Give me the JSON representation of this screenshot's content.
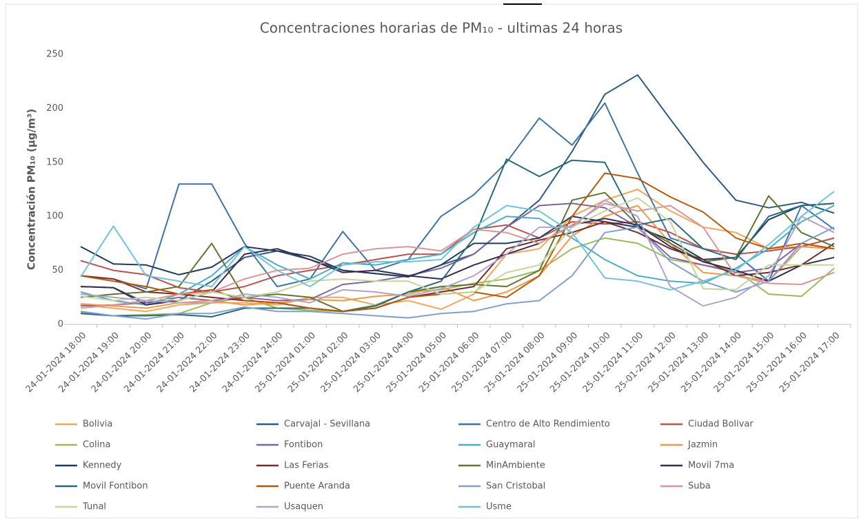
{
  "chart_data": {
    "type": "line",
    "title": "Concentraciones horarias de PM₁₀ - ultimas 24 horas",
    "y_label": "Concentración PM₁₀ (µg/m³)",
    "ylim": [
      0,
      250
    ],
    "yticks": [
      0,
      50,
      100,
      150,
      200,
      250
    ],
    "grid": false,
    "legend": "bottom",
    "categories": [
      "24-01-2024 18:00",
      "24-01-2024 19:00",
      "24-01-2024 20:00",
      "24-01-2024 21:00",
      "24-01-2024 22:00",
      "24-01-2024 23:00",
      "24-01-2024 24:00",
      "25-01-2024 01:00",
      "25-01-2024 02:00",
      "25-01-2024 03:00",
      "25-01-2024 04:00",
      "25-01-2024 05:00",
      "25-01-2024 06:00",
      "25-01-2024 07:00",
      "25-01-2024 08:00",
      "25-01-2024 09:00",
      "25-01-2024 10:00",
      "25-01-2024 11:00",
      "25-01-2024 12:00",
      "25-01-2024 13:00",
      "25-01-2024 14:00",
      "25-01-2024 15:00",
      "25-01-2024 16:00",
      "25-01-2024 17:00"
    ],
    "series": [
      {
        "name": "Bolivia",
        "color": "#f7a55b",
        "values": [
          18,
          15,
          12,
          18,
          20,
          20,
          18,
          25,
          25,
          18,
          22,
          14,
          28,
          65,
          70,
          100,
          115,
          125,
          105,
          90,
          85,
          70,
          72,
          70
        ]
      },
      {
        "name": "Carvajal - Sevillana",
        "color": "#2c5a86",
        "values": [
          35,
          34,
          20,
          22,
          40,
          62,
          68,
          60,
          50,
          47,
          44,
          55,
          65,
          90,
          115,
          160,
          213,
          231,
          190,
          150,
          115,
          108,
          113,
          103
        ]
      },
      {
        "name": "Centro de Alto Rendimiento",
        "color": "#3f73a8",
        "values": [
          45,
          42,
          33,
          130,
          130,
          75,
          35,
          42,
          86,
          50,
          60,
          100,
          120,
          150,
          191,
          166,
          205,
          140,
          80,
          70,
          65,
          40,
          110,
          88
        ]
      },
      {
        "name": "Ciudad Bolivar",
        "color": "#c0504d",
        "values": [
          59,
          50,
          46,
          34,
          30,
          35,
          45,
          50,
          55,
          60,
          65,
          65,
          88,
          92,
          80,
          95,
          93,
          95,
          85,
          70,
          65,
          68,
          72,
          80
        ]
      },
      {
        "name": "Colina",
        "color": "#9bbb59",
        "values": [
          11,
          8,
          9,
          10,
          20,
          25,
          15,
          13,
          12,
          18,
          30,
          32,
          38,
          42,
          50,
          70,
          80,
          75,
          60,
          55,
          50,
          28,
          26,
          52
        ]
      },
      {
        "name": "Fontibon",
        "color": "#8064a2",
        "values": [
          17,
          18,
          20,
          25,
          22,
          25,
          22,
          23,
          37,
          40,
          45,
          52,
          65,
          90,
          110,
          112,
          108,
          90,
          62,
          55,
          48,
          52,
          75,
          70
        ]
      },
      {
        "name": "Guaymaral",
        "color": "#4bacc6",
        "values": [
          30,
          22,
          18,
          28,
          45,
          72,
          55,
          42,
          57,
          55,
          60,
          65,
          85,
          100,
          98,
          80,
          60,
          45,
          40,
          38,
          52,
          70,
          95,
          110
        ]
      },
      {
        "name": "Jazmin",
        "color": "#f79646",
        "values": [
          19,
          17,
          15,
          20,
          22,
          18,
          20,
          23,
          22,
          26,
          28,
          35,
          22,
          30,
          45,
          82,
          100,
          110,
          75,
          48,
          45,
          40,
          72,
          70
        ]
      },
      {
        "name": "Kennedy",
        "color": "#1f3a5f",
        "values": [
          72,
          56,
          55,
          46,
          53,
          72,
          68,
          63,
          50,
          47,
          44,
          55,
          75,
          75,
          80,
          100,
          95,
          90,
          78,
          60,
          62,
          97,
          110,
          112
        ]
      },
      {
        "name": "Las Ferias",
        "color": "#772c2a",
        "values": [
          45,
          42,
          30,
          28,
          25,
          22,
          20,
          15,
          12,
          15,
          25,
          30,
          35,
          70,
          78,
          85,
          95,
          85,
          70,
          60,
          45,
          48,
          55,
          75
        ]
      },
      {
        "name": "MinAmbiente",
        "color": "#5f7530",
        "values": [
          25,
          28,
          30,
          35,
          75,
          25,
          28,
          25,
          12,
          17,
          30,
          35,
          37,
          35,
          50,
          115,
          122,
          92,
          75,
          58,
          62,
          119,
          85,
          72
        ]
      },
      {
        "name": "Movil 7ma",
        "color": "#3b2a50",
        "values": [
          35,
          34,
          18,
          22,
          30,
          65,
          70,
          60,
          48,
          50,
          45,
          42,
          55,
          65,
          75,
          92,
          98,
          92,
          72,
          58,
          50,
          40,
          55,
          62
        ]
      },
      {
        "name": "Movil Fontibon",
        "color": "#276a7c",
        "values": [
          10,
          8,
          8,
          9,
          7,
          15,
          15,
          15,
          12,
          17,
          30,
          40,
          80,
          153,
          137,
          152,
          150,
          92,
          98,
          70,
          60,
          100,
          110,
          112
        ]
      },
      {
        "name": "Puente Aranda",
        "color": "#b65708",
        "values": [
          45,
          40,
          35,
          28,
          32,
          22,
          20,
          15,
          12,
          15,
          25,
          28,
          30,
          25,
          45,
          100,
          140,
          135,
          118,
          104,
          80,
          70,
          75,
          70
        ]
      },
      {
        "name": "San Cristobal",
        "color": "#7f9fcf",
        "values": [
          12,
          8,
          5,
          10,
          10,
          16,
          12,
          12,
          10,
          8,
          6,
          10,
          12,
          19,
          22,
          45,
          85,
          90,
          58,
          40,
          30,
          40,
          75,
          90
        ]
      },
      {
        "name": "Suba",
        "color": "#d99694",
        "values": [
          15,
          18,
          22,
          28,
          30,
          42,
          50,
          52,
          65,
          70,
          72,
          68,
          88,
          85,
          75,
          92,
          112,
          105,
          110,
          90,
          45,
          38,
          37,
          48
        ]
      },
      {
        "name": "Tunal",
        "color": "#c3d69b",
        "values": [
          26,
          22,
          25,
          22,
          30,
          25,
          30,
          40,
          42,
          40,
          40,
          28,
          30,
          48,
          55,
          90,
          105,
          117,
          95,
          33,
          32,
          55,
          55,
          55
        ]
      },
      {
        "name": "Usaquen",
        "color": "#b3a2c7",
        "values": [
          28,
          25,
          22,
          20,
          20,
          28,
          25,
          20,
          32,
          30,
          26,
          33,
          45,
          65,
          90,
          90,
          115,
          100,
          35,
          17,
          25,
          45,
          100,
          85
        ]
      },
      {
        "name": "Usme",
        "color": "#6fc4dc",
        "values": [
          44,
          91,
          45,
          40,
          35,
          72,
          50,
          35,
          55,
          58,
          58,
          60,
          90,
          110,
          105,
          85,
          43,
          40,
          32,
          40,
          50,
          74,
          100,
          123
        ]
      }
    ]
  }
}
